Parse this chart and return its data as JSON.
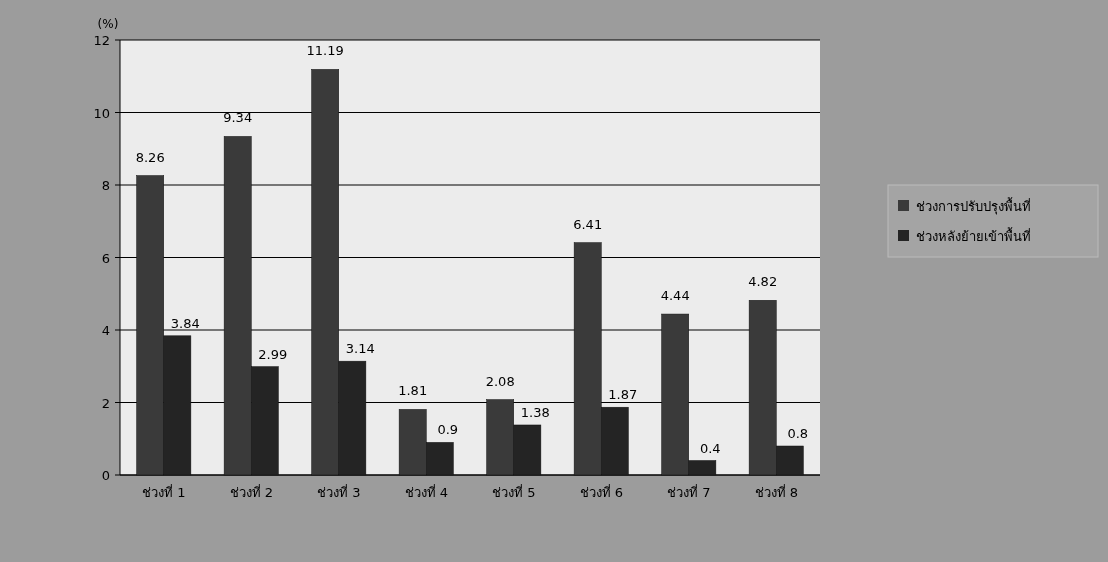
{
  "chart_data": {
    "type": "bar",
    "ylabel": "(%)",
    "categories": [
      "ช่วงที่ 1",
      "ช่วงที่ 2",
      "ช่วงที่ 3",
      "ช่วงที่ 4",
      "ช่วงที่ 5",
      "ช่วงที่ 6",
      "ช่วงที่ 7",
      "ช่วงที่ 8"
    ],
    "series": [
      {
        "name": "ช่วงการปรับปรุงพื้นที่",
        "color": "#3a3a3a",
        "values": [
          8.26,
          9.34,
          11.19,
          1.81,
          2.08,
          6.41,
          4.44,
          4.82
        ]
      },
      {
        "name": "ช่วงหลังย้ายเข้าพื้นที่",
        "color": "#242424",
        "values": [
          3.84,
          2.99,
          3.14,
          0.9,
          1.38,
          1.87,
          0.4,
          0.8
        ]
      }
    ],
    "ylim": [
      0,
      12
    ],
    "yticks": [
      0,
      2,
      4,
      6,
      8,
      10,
      12
    ],
    "grid": "y",
    "legend": "right",
    "data_labels": true
  }
}
